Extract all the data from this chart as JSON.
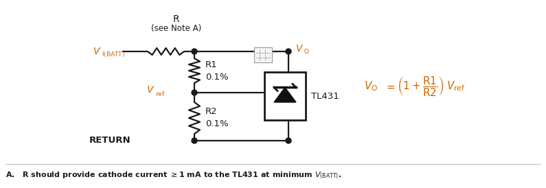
{
  "figsize": [
    7.95,
    2.74
  ],
  "dpi": 100,
  "bg_color": "#ffffff",
  "text_color": "#1a1a1a",
  "orange_color": "#cc6600",
  "line_color": "#1a1a1a",
  "label_r": "R",
  "label_note": "(see Note A)",
  "label_vi": "V",
  "label_vi_sub": "I(BATT)",
  "label_vo": "V",
  "label_vo_sub": "O",
  "label_vref": "V",
  "label_vref_sub": "ref",
  "label_r1": "R1",
  "label_r1_val": "0.1%",
  "label_r2": "R2",
  "label_r2_val": "0.1%",
  "label_tl431": "TL431",
  "label_return": "RETURN",
  "note_text": "A.   R should provide cathode current ≥1 mA to the TL431 at minimum V",
  "note_sub": "(BATT)",
  "note_end": "."
}
